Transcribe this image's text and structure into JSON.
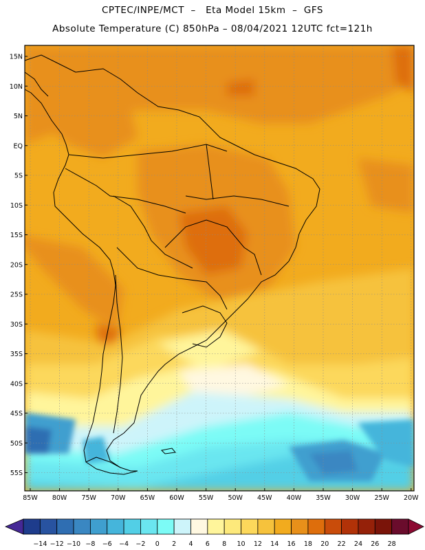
{
  "header": {
    "line1": "CPTEC/INPE/MCT  –   Eta Model 15km  –  GFS",
    "line2": "Absolute Temperature (C) 850hPa – 08/04/2021 12UTC fct=121h"
  },
  "map": {
    "lat_labels": [
      "15N",
      "10N",
      "5N",
      "EQ",
      "5S",
      "10S",
      "15S",
      "20S",
      "25S",
      "30S",
      "35S",
      "40S",
      "45S",
      "50S",
      "55S"
    ],
    "lon_labels": [
      "85W",
      "80W",
      "75W",
      "70W",
      "65W",
      "60W",
      "55W",
      "50W",
      "45W",
      "40W",
      "35W",
      "30W",
      "25W",
      "20W"
    ]
  },
  "colorbar": {
    "labels": [
      "-14",
      "-12",
      "-10",
      "-8",
      "-6",
      "-4",
      "-2",
      "0",
      "2",
      "4",
      "6",
      "8",
      "10",
      "12",
      "14",
      "16",
      "18",
      "20",
      "22",
      "24",
      "26",
      "28"
    ],
    "colors": [
      "#1e3c8c",
      "#2853a0",
      "#2f6eb2",
      "#3a87c2",
      "#3f9fcf",
      "#45b5db",
      "#52cfe6",
      "#6ae6f0",
      "#7cfbf6",
      "#cdf4fa",
      "#fff8e1",
      "#fff59b",
      "#fde97b",
      "#fcd85b",
      "#f6c23c",
      "#f2ab1e",
      "#e8901a",
      "#de6e0c",
      "#c94c0a",
      "#b13208",
      "#952109",
      "#7a1409",
      "#6a0c2c"
    ],
    "out_of_range_low": "#452896",
    "out_of_range_high": "#8c0a32"
  }
}
